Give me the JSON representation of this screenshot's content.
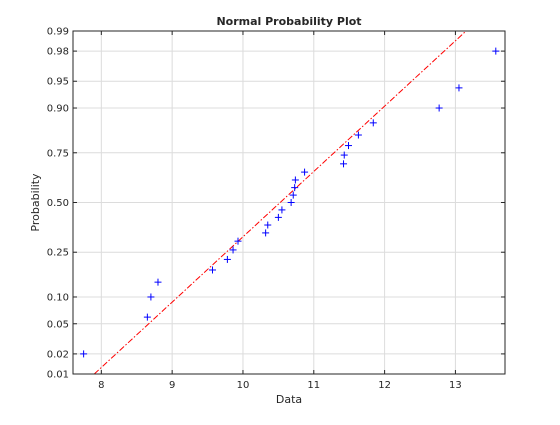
{
  "chart_data": {
    "type": "scatter",
    "title": "Normal Probability Plot",
    "xlabel": "Data",
    "ylabel": "Probability",
    "xlim": [
      7.6,
      13.7
    ],
    "ylim_probability": [
      0.01,
      0.99
    ],
    "y_scale": "normal-probability",
    "grid": true,
    "x_ticks": [
      {
        "value": 8,
        "label": "8"
      },
      {
        "value": 9,
        "label": "9"
      },
      {
        "value": 10,
        "label": "10"
      },
      {
        "value": 11,
        "label": "11"
      },
      {
        "value": 12,
        "label": "12"
      },
      {
        "value": 13,
        "label": "13"
      }
    ],
    "y_ticks": [
      {
        "value": 0.01,
        "label": "0.01"
      },
      {
        "value": 0.02,
        "label": "0.02"
      },
      {
        "value": 0.05,
        "label": "0.05"
      },
      {
        "value": 0.1,
        "label": "0.10"
      },
      {
        "value": 0.25,
        "label": "0.25"
      },
      {
        "value": 0.5,
        "label": "0.50"
      },
      {
        "value": 0.75,
        "label": "0.75"
      },
      {
        "value": 0.9,
        "label": "0.90"
      },
      {
        "value": 0.95,
        "label": "0.95"
      },
      {
        "value": 0.98,
        "label": "0.98"
      },
      {
        "value": 0.99,
        "label": "0.99"
      }
    ],
    "points": [
      {
        "x": 7.75,
        "p": 0.02
      },
      {
        "x": 8.65,
        "p": 0.06
      },
      {
        "x": 8.7,
        "p": 0.1
      },
      {
        "x": 8.8,
        "p": 0.14
      },
      {
        "x": 9.57,
        "p": 0.18
      },
      {
        "x": 9.78,
        "p": 0.22
      },
      {
        "x": 9.86,
        "p": 0.26
      },
      {
        "x": 9.93,
        "p": 0.3
      },
      {
        "x": 10.32,
        "p": 0.34
      },
      {
        "x": 10.35,
        "p": 0.38
      },
      {
        "x": 10.5,
        "p": 0.42
      },
      {
        "x": 10.55,
        "p": 0.46
      },
      {
        "x": 10.68,
        "p": 0.5
      },
      {
        "x": 10.71,
        "p": 0.54
      },
      {
        "x": 10.73,
        "p": 0.58
      },
      {
        "x": 10.74,
        "p": 0.62
      },
      {
        "x": 10.87,
        "p": 0.66
      },
      {
        "x": 11.42,
        "p": 0.7
      },
      {
        "x": 11.43,
        "p": 0.74
      },
      {
        "x": 11.49,
        "p": 0.78
      },
      {
        "x": 11.63,
        "p": 0.82
      },
      {
        "x": 11.84,
        "p": 0.86
      },
      {
        "x": 12.77,
        "p": 0.9
      },
      {
        "x": 13.05,
        "p": 0.94
      },
      {
        "x": 13.57,
        "p": 0.98
      }
    ],
    "reference_line": {
      "p0": 0.01,
      "x0": 7.9,
      "p1": 0.99,
      "x1": 13.15
    },
    "colors": {
      "points": "#0000ff",
      "reference_line": "#ff0000",
      "axes": "#262626",
      "grid": "#dcdcdc"
    }
  }
}
